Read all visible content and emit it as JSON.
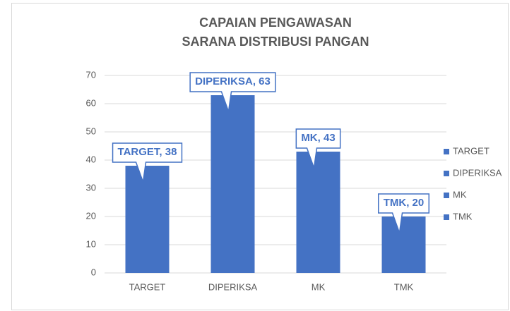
{
  "chart_data": {
    "type": "bar",
    "title": [
      "CAPAIAN PENGAWASAN",
      "SARANA DISTRIBUSI PANGAN"
    ],
    "categories": [
      "TARGET",
      "DIPERIKSA",
      "MK",
      "TMK"
    ],
    "values": [
      38,
      63,
      43,
      20
    ],
    "value_labels": [
      "TARGET, 38",
      "DIPERIKSA, 63",
      "MK, 43",
      "TMK, 20"
    ],
    "color": "#4472c4",
    "ylim": [
      0,
      70
    ],
    "yticks": [
      0,
      10,
      20,
      30,
      40,
      50,
      60,
      70
    ],
    "grid": true,
    "legend": "right"
  }
}
